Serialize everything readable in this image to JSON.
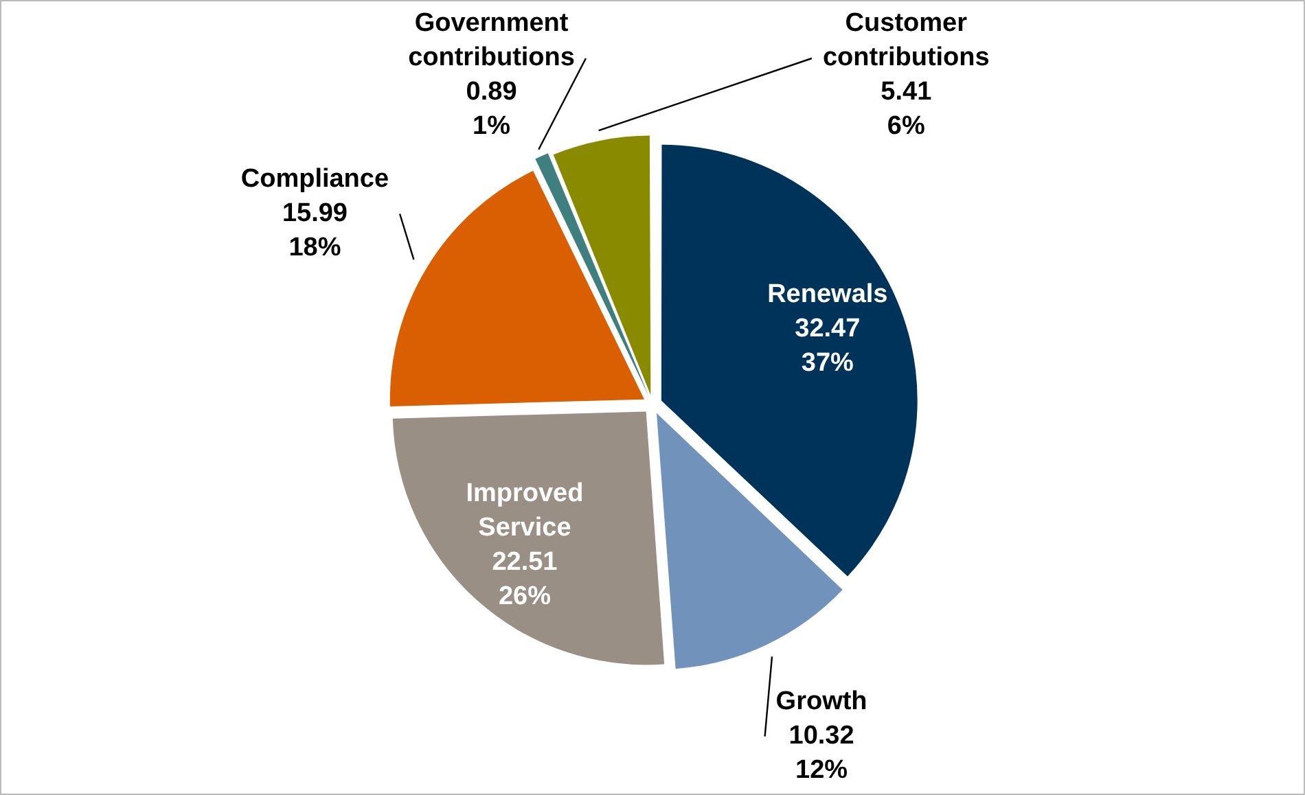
{
  "chart_data": {
    "type": "pie",
    "categories": [
      "Renewals",
      "Growth",
      "Improved Service",
      "Compliance",
      "Government contributions",
      "Customer contributions"
    ],
    "values": [
      32.47,
      10.32,
      22.51,
      15.99,
      0.89,
      5.41
    ],
    "colors": [
      "#003359",
      "#7192bb",
      "#998f84",
      "#d95f02",
      "#3f7f7f",
      "#8a8a00"
    ],
    "value_labels": [
      "32.47\n37%",
      "10.32\n12%",
      "22.51\n26%",
      "15.99\n18%",
      "0.89\n1%",
      "5.41\n6%"
    ]
  }
}
